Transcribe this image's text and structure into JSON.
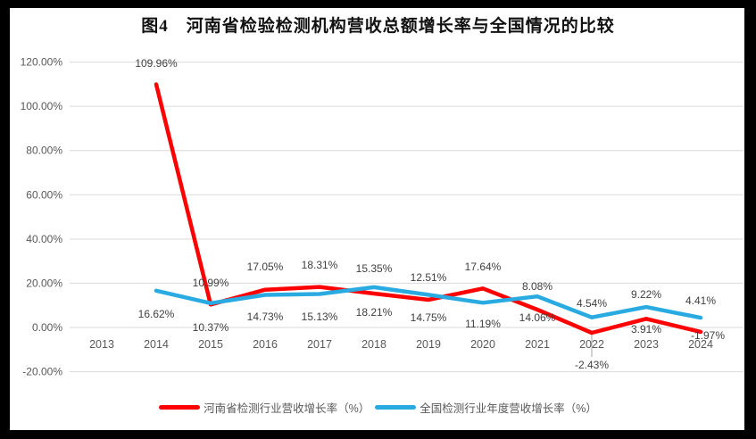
{
  "frame": {
    "border_color": "#000000",
    "background_color": "#ffffff"
  },
  "chart_data": {
    "type": "line",
    "title": "图4　河南省检验检测机构营收总额增长率与全国情况的比较",
    "categories": [
      "2013",
      "2014",
      "2015",
      "2016",
      "2017",
      "2018",
      "2019",
      "2020",
      "2021",
      "2022",
      "2023",
      "2024"
    ],
    "series": [
      {
        "name": "河南省检测行业营收增长率（%）",
        "color": "#FF0000",
        "values": [
          null,
          109.96,
          10.37,
          17.05,
          18.31,
          15.35,
          12.51,
          17.64,
          8.08,
          -2.43,
          3.91,
          -1.97
        ],
        "labels": [
          "",
          "109.96%",
          "10.37%",
          "17.05%",
          "18.31%",
          "15.35%",
          "12.51%",
          "17.64%",
          "8.08%",
          "-2.43%",
          "3.91%",
          "-1.97%"
        ]
      },
      {
        "name": "全国检测行业年度营收增长率（%）",
        "color": "#29ABE2",
        "values": [
          null,
          16.62,
          10.99,
          14.73,
          15.13,
          18.21,
          14.75,
          11.19,
          14.06,
          4.54,
          9.22,
          4.41
        ],
        "labels": [
          "",
          "16.62%",
          "10.99%",
          "14.73%",
          "15.13%",
          "18.21%",
          "14.75%",
          "11.19%",
          "14.06%",
          "4.54%",
          "9.22%",
          "4.41%"
        ]
      }
    ],
    "y_axis": {
      "min": -20,
      "max": 120,
      "step": 20,
      "tick_labels": [
        "-20.00%",
        "0.00%",
        "20.00%",
        "40.00%",
        "60.00%",
        "80.00%",
        "100.00%",
        "120.00%"
      ]
    },
    "xlabel": "",
    "ylabel": "",
    "grid": true,
    "legend_position": "bottom",
    "gridline_color": "#D9D9D9",
    "axis_label_color": "#595959",
    "data_label_color": "#404040",
    "leader_line_color": "#A6A6A6"
  }
}
